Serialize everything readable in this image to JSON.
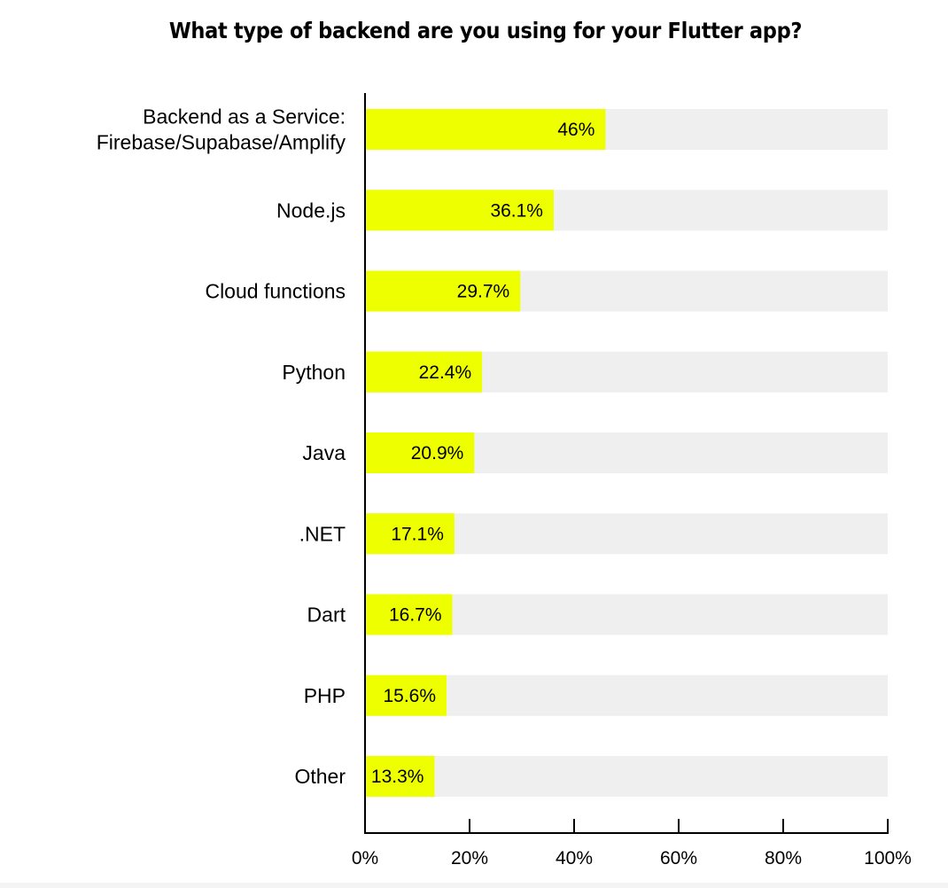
{
  "chart_data": {
    "type": "bar",
    "orientation": "horizontal",
    "title": "What type of backend are you using for your Flutter app?",
    "categories": [
      [
        "Backend as a Service:",
        "Firebase/Supabase/Amplify"
      ],
      [
        "Node.js"
      ],
      [
        "Cloud functions"
      ],
      [
        "Python"
      ],
      [
        "Java"
      ],
      [
        ".NET"
      ],
      [
        "Dart"
      ],
      [
        "PHP"
      ],
      [
        "Other"
      ]
    ],
    "values": [
      46,
      36.1,
      29.7,
      22.4,
      20.9,
      17.1,
      16.7,
      15.6,
      13.3
    ],
    "value_labels": [
      "46%",
      "36.1%",
      "29.7%",
      "22.4%",
      "20.9%",
      "17.1%",
      "16.7%",
      "15.6%",
      "13.3%"
    ],
    "xlim": [
      0,
      100
    ],
    "x_ticks": [
      0,
      20,
      40,
      60,
      80,
      100
    ],
    "x_tick_labels": [
      "0%",
      "20%",
      "40%",
      "60%",
      "80%",
      "100%"
    ],
    "xlabel": "",
    "ylabel": "",
    "grid": false,
    "colors": {
      "bar": "#eeff00",
      "track": "#efefef",
      "axis": "#000000"
    }
  }
}
